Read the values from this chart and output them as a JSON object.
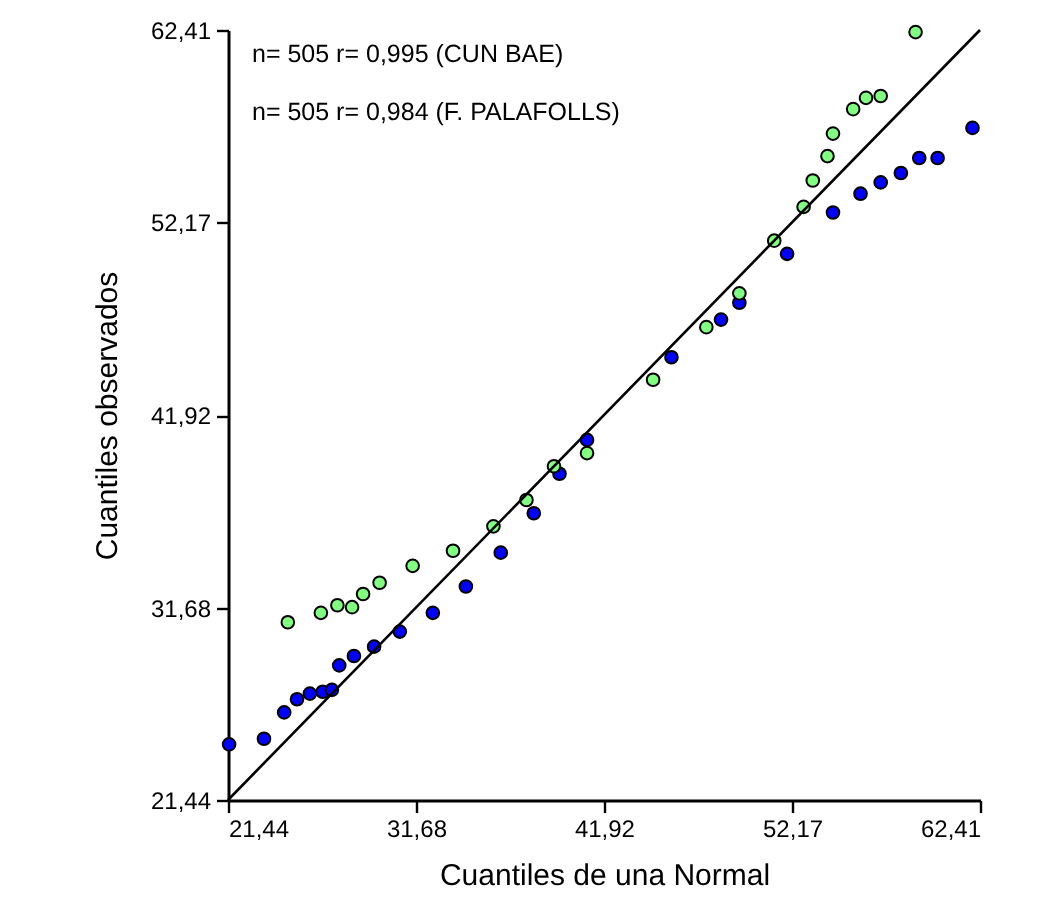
{
  "chart_data": {
    "type": "scatter",
    "xlabel": "Cuantiles de una Normal",
    "ylabel": "Cuantiles observados",
    "annotations": [
      "n= 505 r= 0,995 (CUN BAE)",
      "n= 505 r= 0,984 (F. PALAFOLLS)"
    ],
    "xlim": [
      21.44,
      62.41
    ],
    "ylim": [
      21.44,
      62.41
    ],
    "xticks": [
      {
        "value": 21.44,
        "label": "21,44"
      },
      {
        "value": 31.68,
        "label": "31,68"
      },
      {
        "value": 41.92,
        "label": "41,92"
      },
      {
        "value": 52.17,
        "label": "52,17"
      },
      {
        "value": 62.41,
        "label": "62,41"
      }
    ],
    "yticks": [
      {
        "value": 21.44,
        "label": "21,44"
      },
      {
        "value": 31.68,
        "label": "31,68"
      },
      {
        "value": 41.92,
        "label": "41,92"
      },
      {
        "value": 52.17,
        "label": "52,17"
      },
      {
        "value": 62.41,
        "label": "62,41"
      }
    ],
    "grid": false,
    "series": [
      {
        "color": "#0000ff",
        "marker": "circle",
        "x": [
          21.5,
          23.4,
          24.5,
          25.2,
          25.9,
          26.6,
          27.1,
          27.5,
          28.3,
          29.4,
          30.8,
          32.6,
          34.4,
          36.3,
          38.1,
          39.5,
          41.0,
          45.6,
          48.3,
          49.3,
          51.9,
          54.4,
          55.9,
          57.0,
          58.1,
          59.1,
          60.1,
          62.0
        ],
        "values": [
          24.4,
          24.7,
          26.1,
          26.8,
          27.1,
          27.2,
          27.3,
          28.6,
          29.1,
          29.6,
          30.4,
          31.4,
          32.8,
          34.6,
          36.7,
          38.8,
          40.6,
          45.0,
          47.0,
          47.9,
          50.5,
          52.7,
          53.7,
          54.3,
          54.8,
          55.6,
          55.6,
          57.2
        ]
      },
      {
        "color": "#80ff80",
        "marker": "circle",
        "x": [
          24.7,
          26.5,
          27.4,
          28.2,
          28.8,
          29.7,
          31.5,
          33.7,
          35.9,
          37.7,
          39.2,
          41.0,
          44.6,
          47.5,
          49.3,
          51.2,
          52.8,
          53.3,
          54.1,
          54.4,
          55.5,
          56.2,
          57.0,
          58.9
        ],
        "values": [
          30.9,
          31.4,
          31.8,
          31.7,
          32.4,
          33.0,
          33.9,
          34.7,
          36.0,
          37.4,
          39.2,
          39.9,
          43.8,
          46.6,
          48.4,
          51.2,
          53.0,
          54.4,
          55.7,
          56.9,
          58.2,
          58.8,
          58.9,
          62.3
        ]
      },
      {
        "type": "line",
        "color": "#000000",
        "x": [
          21.44,
          62.41
        ],
        "values": [
          21.44,
          62.41
        ]
      }
    ]
  }
}
